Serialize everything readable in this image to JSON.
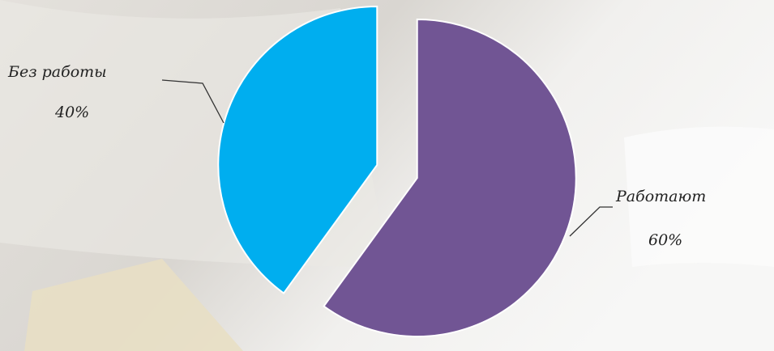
{
  "chart_data": {
    "type": "pie",
    "categories": [
      "Работают",
      "Без работы"
    ],
    "values": [
      60,
      40
    ],
    "value_labels": [
      "60%",
      "40%"
    ],
    "colors": [
      "#715594",
      "#00aeef"
    ]
  }
}
